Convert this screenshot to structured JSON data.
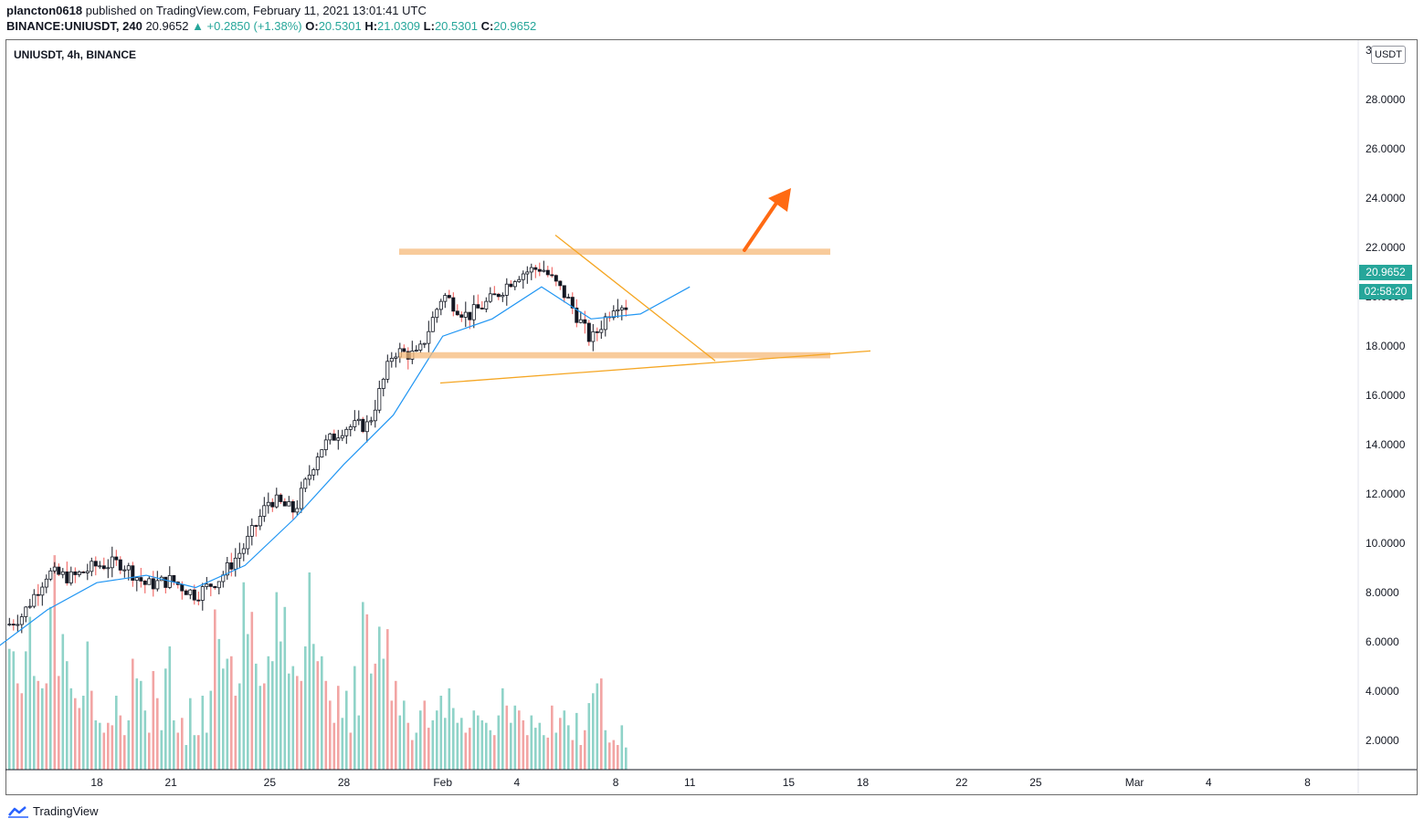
{
  "header": {
    "author": "plancton0618",
    "published": "published on TradingView.com, February 11, 2021 13:01:41 UTC",
    "symbol_full": "BINANCE:UNIUSDT, 240",
    "last": "20.9652",
    "change": "▲ +0.2850 (+1.38%)",
    "o_label": "O:",
    "o_value": "20.5301",
    "h_label": "H:",
    "h_value": "21.0309",
    "l_label": "L:",
    "l_value": "20.5301",
    "c_label": "C:",
    "c_value": "20.9652"
  },
  "chart_title": "UNIUSDT, 4h, BINANCE",
  "unit_label": "USDT",
  "price_label": "20.9652",
  "countdown_label": "02:58:20",
  "footer_brand": "TradingView",
  "colors": {
    "up": "#26a69a",
    "down": "#ef5350",
    "candle_up_fill": "#ffffff",
    "candle_body_line": "#131722",
    "ema": "#2196f3",
    "zone": "#f5b97a",
    "trendline": "#f5a623",
    "arrow": "#ff6a13",
    "vol_up": "#8fd3c8",
    "vol_down": "#f2a5a4"
  },
  "icons": [
    "tradingview-logo-icon",
    "arrow-up-icon"
  ],
  "chart_data": {
    "type": "candlestick",
    "title": "UNIUSDT, 4h, BINANCE",
    "y_ticks": [
      "2.0000",
      "4.0000",
      "6.0000",
      "8.0000",
      "10.0000",
      "12.0000",
      "14.0000",
      "16.0000",
      "18.0000",
      "20.0000",
      "22.0000",
      "24.0000",
      "26.0000",
      "28.0000",
      "30.0000"
    ],
    "x_ticks": [
      "18",
      "21",
      "25",
      "28",
      "Feb",
      "4",
      "8",
      "11",
      "15",
      "18",
      "22",
      "25",
      "Mar",
      "4",
      "8"
    ],
    "ylim": [
      0,
      30
    ],
    "x_axis_range": [
      "Jan 14",
      "Mar 10"
    ],
    "price_close_path": [
      [
        "Jan 14",
        6.4
      ],
      [
        "Jan 15",
        7.1
      ],
      [
        "Jan 16",
        8.8
      ],
      [
        "Jan 17",
        8.6
      ],
      [
        "Jan 18",
        9.1
      ],
      [
        "Jan 19",
        9.2
      ],
      [
        "Jan 20",
        8.3
      ],
      [
        "Jan 21",
        8.5
      ],
      [
        "Jan 22",
        7.9
      ],
      [
        "Jan 23",
        8.6
      ],
      [
        "Jan 24",
        9.9
      ],
      [
        "Jan 25",
        11.8
      ],
      [
        "Jan 26",
        11.3
      ],
      [
        "Jan 27",
        13.8
      ],
      [
        "Jan 28",
        14.7
      ],
      [
        "Jan 29",
        14.8
      ],
      [
        "Jan 30",
        17.8
      ],
      [
        "Jan 31",
        17.6
      ],
      [
        "Feb 1",
        20.1
      ],
      [
        "Feb 2",
        19.2
      ],
      [
        "Feb 3",
        19.9
      ],
      [
        "Feb 4",
        20.9
      ],
      [
        "Feb 5",
        21.2
      ],
      [
        "Feb 6",
        20.0
      ],
      [
        "Feb 7",
        18.2
      ],
      [
        "Feb 8",
        19.8
      ],
      [
        "Feb 9",
        19.4
      ],
      [
        "Feb 10",
        21.5
      ],
      [
        "Feb 11",
        20.97
      ]
    ],
    "ema_path": [
      [
        "Jan 14",
        5.8
      ],
      [
        "Jan 16",
        7.3
      ],
      [
        "Jan 18",
        8.4
      ],
      [
        "Jan 20",
        8.7
      ],
      [
        "Jan 22",
        8.2
      ],
      [
        "Jan 24",
        9.1
      ],
      [
        "Jan 26",
        11.0
      ],
      [
        "Jan 28",
        13.2
      ],
      [
        "Jan 30",
        15.2
      ],
      [
        "Feb 1",
        18.4
      ],
      [
        "Feb 3",
        19.1
      ],
      [
        "Feb 5",
        20.4
      ],
      [
        "Feb 7",
        19.1
      ],
      [
        "Feb 9",
        19.3
      ],
      [
        "Feb 11",
        20.4
      ]
    ],
    "annotations": {
      "resistance_zone": [
        21.7,
        21.95
      ],
      "support_zone": [
        17.5,
        17.75
      ],
      "rising_trendline": [
        [
          "Jan 31",
          16.5
        ],
        [
          "Feb 18",
          17.8
        ]
      ],
      "descending_trendline": [
        [
          "Feb 5",
          22.5
        ],
        [
          "Feb 12",
          17.4
        ]
      ],
      "arrow": "up-right toward ~24.4"
    },
    "volume_bars": [
      [
        4.9,
        "u"
      ],
      [
        4.8,
        "u"
      ],
      [
        3.5,
        "d"
      ],
      [
        3.1,
        "d"
      ],
      [
        4.8,
        "u"
      ],
      [
        6.2,
        "u"
      ],
      [
        3.8,
        "u"
      ],
      [
        3.6,
        "d"
      ],
      [
        3.3,
        "u"
      ],
      [
        3.5,
        "d"
      ],
      [
        6.6,
        "u"
      ],
      [
        8.7,
        "d"
      ],
      [
        3.8,
        "d"
      ],
      [
        5.5,
        "u"
      ],
      [
        4.4,
        "u"
      ],
      [
        3.3,
        "u"
      ],
      [
        2.9,
        "d"
      ],
      [
        2.5,
        "d"
      ],
      [
        3.0,
        "u"
      ],
      [
        5.2,
        "u"
      ],
      [
        3.2,
        "d"
      ],
      [
        2.0,
        "u"
      ],
      [
        1.9,
        "u"
      ],
      [
        1.5,
        "d"
      ],
      [
        1.9,
        "d"
      ],
      [
        1.8,
        "d"
      ],
      [
        3.0,
        "u"
      ],
      [
        2.2,
        "d"
      ],
      [
        1.4,
        "d"
      ],
      [
        2.0,
        "u"
      ],
      [
        4.5,
        "d"
      ],
      [
        3.7,
        "u"
      ],
      [
        3.6,
        "u"
      ],
      [
        2.4,
        "u"
      ],
      [
        1.5,
        "d"
      ],
      [
        4.0,
        "d"
      ],
      [
        2.9,
        "d"
      ],
      [
        1.6,
        "u"
      ],
      [
        4.1,
        "u"
      ],
      [
        5.0,
        "u"
      ],
      [
        2.0,
        "u"
      ],
      [
        1.5,
        "d"
      ],
      [
        2.1,
        "d"
      ],
      [
        1.0,
        "u"
      ],
      [
        2.9,
        "u"
      ],
      [
        1.4,
        "u"
      ],
      [
        1.4,
        "d"
      ],
      [
        3.0,
        "u"
      ],
      [
        1.5,
        "u"
      ],
      [
        3.2,
        "u"
      ],
      [
        6.5,
        "d"
      ],
      [
        5.3,
        "u"
      ],
      [
        4.1,
        "u"
      ],
      [
        4.5,
        "u"
      ],
      [
        4.6,
        "d"
      ],
      [
        3.0,
        "d"
      ],
      [
        3.5,
        "u"
      ],
      [
        7.6,
        "u"
      ],
      [
        5.5,
        "u"
      ],
      [
        6.4,
        "d"
      ],
      [
        4.3,
        "u"
      ],
      [
        3.4,
        "u"
      ],
      [
        3.5,
        "d"
      ],
      [
        4.6,
        "u"
      ],
      [
        4.4,
        "u"
      ],
      [
        7.2,
        "u"
      ],
      [
        5.2,
        "u"
      ],
      [
        6.6,
        "u"
      ],
      [
        3.9,
        "u"
      ],
      [
        4.2,
        "u"
      ],
      [
        3.8,
        "d"
      ],
      [
        3.6,
        "d"
      ],
      [
        5.0,
        "u"
      ],
      [
        8.0,
        "u"
      ],
      [
        5.1,
        "u"
      ],
      [
        4.4,
        "d"
      ],
      [
        4.6,
        "u"
      ],
      [
        3.6,
        "d"
      ],
      [
        2.8,
        "d"
      ],
      [
        1.9,
        "d"
      ],
      [
        3.4,
        "d"
      ],
      [
        2.1,
        "u"
      ],
      [
        3.2,
        "u"
      ],
      [
        1.5,
        "d"
      ],
      [
        4.2,
        "u"
      ],
      [
        2.2,
        "u"
      ],
      [
        6.8,
        "u"
      ],
      [
        6.3,
        "d"
      ],
      [
        3.9,
        "u"
      ],
      [
        4.3,
        "d"
      ],
      [
        5.8,
        "u"
      ],
      [
        4.5,
        "u"
      ],
      [
        5.7,
        "d"
      ],
      [
        2.8,
        "d"
      ],
      [
        3.6,
        "d"
      ],
      [
        2.2,
        "u"
      ],
      [
        2.8,
        "u"
      ],
      [
        1.9,
        "d"
      ],
      [
        1.2,
        "d"
      ],
      [
        1.5,
        "u"
      ],
      [
        2.4,
        "u"
      ],
      [
        2.8,
        "d"
      ],
      [
        1.7,
        "d"
      ],
      [
        2.0,
        "u"
      ],
      [
        2.4,
        "u"
      ],
      [
        3.0,
        "u"
      ],
      [
        2.1,
        "u"
      ],
      [
        3.3,
        "u"
      ],
      [
        2.5,
        "u"
      ],
      [
        1.9,
        "u"
      ],
      [
        2.1,
        "u"
      ],
      [
        1.5,
        "d"
      ],
      [
        1.7,
        "d"
      ],
      [
        2.4,
        "u"
      ],
      [
        2.2,
        "u"
      ],
      [
        2.0,
        "u"
      ],
      [
        1.9,
        "u"
      ],
      [
        1.6,
        "u"
      ],
      [
        1.4,
        "d"
      ],
      [
        2.2,
        "u"
      ],
      [
        3.3,
        "u"
      ],
      [
        2.6,
        "d"
      ],
      [
        1.9,
        "u"
      ],
      [
        2.6,
        "u"
      ],
      [
        2.4,
        "d"
      ],
      [
        2.0,
        "d"
      ],
      [
        1.4,
        "d"
      ],
      [
        2.2,
        "u"
      ],
      [
        1.7,
        "u"
      ],
      [
        1.9,
        "u"
      ],
      [
        1.4,
        "u"
      ],
      [
        1.3,
        "d"
      ],
      [
        2.6,
        "d"
      ],
      [
        1.5,
        "u"
      ],
      [
        2.1,
        "d"
      ],
      [
        2.4,
        "u"
      ],
      [
        1.8,
        "u"
      ],
      [
        1.2,
        "d"
      ],
      [
        2.3,
        "u"
      ],
      [
        1.0,
        "d"
      ],
      [
        1.6,
        "d"
      ],
      [
        2.7,
        "u"
      ],
      [
        3.1,
        "u"
      ],
      [
        3.5,
        "u"
      ],
      [
        3.7,
        "d"
      ],
      [
        1.6,
        "u"
      ],
      [
        1.1,
        "d"
      ],
      [
        1.2,
        "d"
      ],
      [
        1.0,
        "d"
      ],
      [
        1.8,
        "u"
      ],
      [
        0.9,
        "u"
      ]
    ]
  }
}
